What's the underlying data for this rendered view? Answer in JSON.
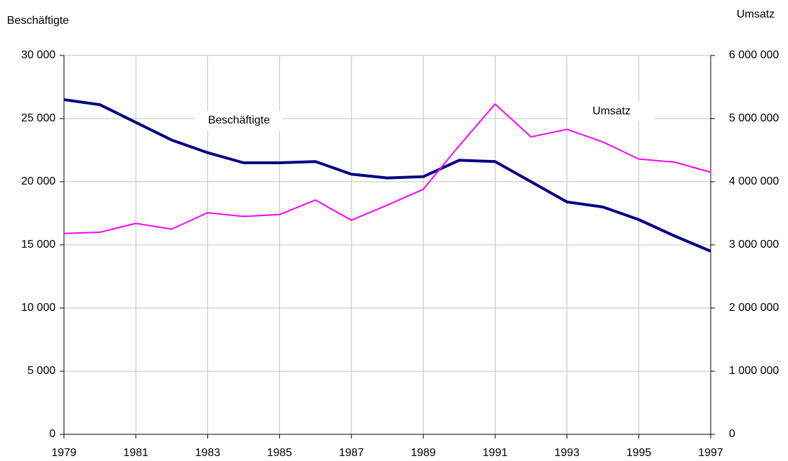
{
  "chart_data": {
    "type": "line",
    "y_label": "Beschäftigte",
    "y2_label": "Umsatz",
    "x": [
      1979,
      1980,
      1981,
      1982,
      1983,
      1984,
      1985,
      1986,
      1987,
      1988,
      1989,
      1990,
      1991,
      1992,
      1993,
      1994,
      1995,
      1996,
      1997
    ],
    "series": [
      {
        "name": "Beschäftigte",
        "color": "#000080",
        "axis": "y",
        "values": [
          26500,
          26100,
          24700,
          23300,
          22300,
          21500,
          21500,
          21600,
          20600,
          20300,
          20400,
          21700,
          21600,
          20000,
          18400,
          18000,
          17000,
          15700,
          14500
        ]
      },
      {
        "name": "Umsatz",
        "color": "#ff00ff",
        "axis": "y2",
        "values": [
          3180000,
          3200000,
          3340000,
          3250000,
          3510000,
          3450000,
          3480000,
          3710000,
          3390000,
          3630000,
          3880000,
          4570000,
          5230000,
          4710000,
          4830000,
          4630000,
          4360000,
          4310000,
          4150000
        ]
      }
    ],
    "xlim": [
      1979,
      1997
    ],
    "xticks": [
      1979,
      1981,
      1983,
      1985,
      1987,
      1989,
      1991,
      1993,
      1995,
      1997
    ],
    "ylim": [
      0,
      30000
    ],
    "yticks": [
      0,
      {
        "value": 5000,
        "label": "5 000"
      },
      {
        "value": 10000,
        "label": "10 000"
      },
      {
        "value": 15000,
        "label": "15 000"
      },
      {
        "value": 20000,
        "label": "20 000"
      },
      {
        "value": 25000,
        "label": "25 000"
      },
      {
        "value": 30000,
        "label": "30 000"
      }
    ],
    "y2lim": [
      0,
      6000000
    ],
    "y2ticks": [
      0,
      {
        "value": 1000000,
        "label": "1 000 000"
      },
      {
        "value": 2000000,
        "label": "2 000 000"
      },
      {
        "value": 3000000,
        "label": "3 000 000"
      },
      {
        "value": 4000000,
        "label": "4 000 000"
      },
      {
        "value": 5000000,
        "label": "5 000 000"
      },
      {
        "value": 6000000,
        "label": "6 000 000"
      }
    ],
    "grid": true
  }
}
